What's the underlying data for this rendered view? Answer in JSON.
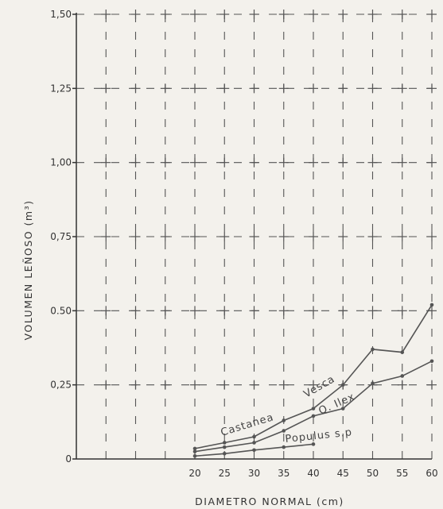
{
  "chart_data": {
    "type": "line",
    "title": "",
    "xlabel": "DIAMETRO NORMAL (cm)",
    "ylabel": "VOLUMEN LEÑOSO (m³)",
    "x": [
      20,
      25,
      30,
      35,
      40,
      45,
      50,
      55,
      60
    ],
    "x_tick_labels": [
      "20",
      "25",
      "30",
      "35",
      "40",
      "45",
      "50",
      "55",
      "60"
    ],
    "xlim": [
      0,
      60
    ],
    "y_tick_values": [
      0,
      0.25,
      0.5,
      0.75,
      1.0,
      1.25,
      1.5
    ],
    "y_tick_labels": [
      "0",
      "0,25",
      "0.50",
      "0,75",
      "1,00",
      "1,25",
      "1,50"
    ],
    "ylim": [
      0,
      1.5
    ],
    "grid": true,
    "series": [
      {
        "name": "Castanea Vesca",
        "x": [
          20,
          25,
          30,
          35,
          40,
          45,
          50,
          55,
          60
        ],
        "values": [
          0.035,
          0.055,
          0.075,
          0.13,
          0.17,
          0.25,
          0.37,
          0.36,
          0.52
        ]
      },
      {
        "name": "Q. Ilex",
        "x": [
          20,
          25,
          30,
          35,
          40,
          45,
          50,
          55,
          60
        ],
        "values": [
          0.025,
          0.04,
          0.055,
          0.095,
          0.145,
          0.17,
          0.255,
          0.28,
          0.33
        ]
      },
      {
        "name": "Populus s.p",
        "x": [
          20,
          25,
          30,
          35,
          40
        ],
        "values": [
          0.01,
          0.018,
          0.03,
          0.04,
          0.05
        ]
      }
    ],
    "curve_labels": [
      "Castanea",
      "Vesca",
      "Q. Ilex",
      "Populus s.p"
    ]
  }
}
